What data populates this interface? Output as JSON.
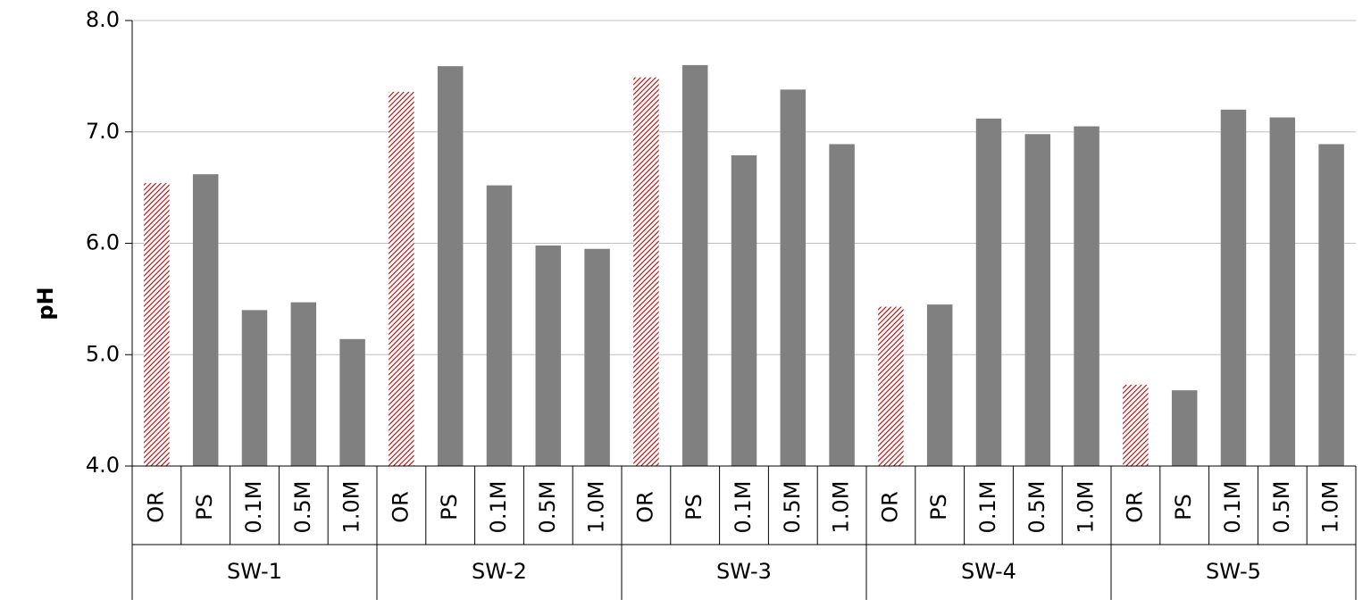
{
  "chart_data": {
    "type": "bar",
    "ylabel": "pH",
    "ylim": [
      4.0,
      8.0
    ],
    "yticks": [
      "4.0",
      "5.0",
      "6.0",
      "7.0",
      "8.0"
    ],
    "grid": true,
    "groups": [
      {
        "label": "SW-1",
        "categories": [
          "OR",
          "PS",
          "0.1M",
          "0.5M",
          "1.0M"
        ],
        "values": [
          6.54,
          6.62,
          5.4,
          5.47,
          5.14
        ]
      },
      {
        "label": "SW-2",
        "categories": [
          "OR",
          "PS",
          "0.1M",
          "0.5M",
          "1.0M"
        ],
        "values": [
          7.36,
          7.59,
          6.52,
          5.98,
          5.95
        ]
      },
      {
        "label": "SW-3",
        "categories": [
          "OR",
          "PS",
          "0.1M",
          "0.5M",
          "1.0M"
        ],
        "values": [
          7.49,
          7.6,
          6.79,
          7.38,
          6.89
        ]
      },
      {
        "label": "SW-4",
        "categories": [
          "OR",
          "PS",
          "0.1M",
          "0.5M",
          "1.0M"
        ],
        "values": [
          5.43,
          5.45,
          7.12,
          6.98,
          7.05
        ]
      },
      {
        "label": "SW-5",
        "categories": [
          "OR",
          "PS",
          "0.1M",
          "0.5M",
          "1.0M"
        ],
        "values": [
          4.73,
          4.68,
          7.2,
          7.13,
          6.89
        ]
      }
    ],
    "colors": {
      "bar": "#808080",
      "hatch_stroke": "#c00000",
      "grid": "#bfbfbf",
      "axis": "#000000"
    }
  }
}
